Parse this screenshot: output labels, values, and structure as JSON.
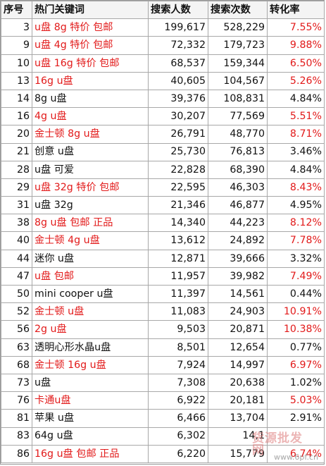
{
  "table": {
    "headers": [
      "序号",
      "热门关键词",
      "搜索人数",
      "搜索次数",
      "转化率"
    ],
    "rows": [
      {
        "id": "3",
        "keyword": "u盘 8g 特价 包邮",
        "users": "199,617",
        "searches": "528,229",
        "rate": "7.55%",
        "highlight": true
      },
      {
        "id": "9",
        "keyword": "u盘 4g 特价 包邮",
        "users": "72,332",
        "searches": "179,723",
        "rate": "9.88%",
        "highlight": true
      },
      {
        "id": "10",
        "keyword": "u盘 16g 特价 包邮",
        "users": "68,537",
        "searches": "159,344",
        "rate": "6.50%",
        "highlight": true
      },
      {
        "id": "13",
        "keyword": "16g u盘",
        "users": "40,605",
        "searches": "104,567",
        "rate": "5.26%",
        "highlight": true
      },
      {
        "id": "14",
        "keyword": "8g u盘",
        "users": "39,376",
        "searches": "108,831",
        "rate": "4.84%",
        "highlight": false
      },
      {
        "id": "16",
        "keyword": "4g u盘",
        "users": "30,207",
        "searches": "77,569",
        "rate": "5.51%",
        "highlight": true
      },
      {
        "id": "20",
        "keyword": "金士顿 8g u盘",
        "users": "26,791",
        "searches": "48,770",
        "rate": "8.71%",
        "highlight": true
      },
      {
        "id": "21",
        "keyword": "创意 u盘",
        "users": "25,730",
        "searches": "76,813",
        "rate": "3.46%",
        "highlight": false
      },
      {
        "id": "28",
        "keyword": "u盘 可爱",
        "users": "22,828",
        "searches": "68,390",
        "rate": "4.84%",
        "highlight": false
      },
      {
        "id": "29",
        "keyword": "u盘 32g 特价 包邮",
        "users": "22,595",
        "searches": "46,303",
        "rate": "8.43%",
        "highlight": true
      },
      {
        "id": "31",
        "keyword": "u盘 32g",
        "users": "21,346",
        "searches": "46,877",
        "rate": "4.95%",
        "highlight": false
      },
      {
        "id": "38",
        "keyword": "8g u盘 包邮 正品",
        "users": "14,340",
        "searches": "44,223",
        "rate": "8.12%",
        "highlight": true
      },
      {
        "id": "40",
        "keyword": "金士顿 4g u盘",
        "users": "13,612",
        "searches": "24,892",
        "rate": "7.78%",
        "highlight": true
      },
      {
        "id": "44",
        "keyword": "迷你 u盘",
        "users": "12,871",
        "searches": "39,666",
        "rate": "3.32%",
        "highlight": false
      },
      {
        "id": "47",
        "keyword": "u盘 包邮",
        "users": "11,957",
        "searches": "39,982",
        "rate": "7.49%",
        "highlight": true
      },
      {
        "id": "50",
        "keyword": "mini cooper u盘",
        "users": "11,397",
        "searches": "14,561",
        "rate": "0.44%",
        "highlight": false
      },
      {
        "id": "52",
        "keyword": "金士顿 u盘",
        "users": "11,083",
        "searches": "24,903",
        "rate": "10.91%",
        "highlight": true
      },
      {
        "id": "56",
        "keyword": "2g u盘",
        "users": "9,503",
        "searches": "20,871",
        "rate": "10.38%",
        "highlight": true
      },
      {
        "id": "63",
        "keyword": "透明心形水晶u盘",
        "users": "8,501",
        "searches": "12,654",
        "rate": "0.77%",
        "highlight": false
      },
      {
        "id": "68",
        "keyword": "金士顿 16g u盘",
        "users": "7,924",
        "searches": "14,997",
        "rate": "6.97%",
        "highlight": true
      },
      {
        "id": "73",
        "keyword": "u盘",
        "users": "7,308",
        "searches": "20,638",
        "rate": "1.02%",
        "highlight": false
      },
      {
        "id": "76",
        "keyword": "卡通u盘",
        "users": "6,922",
        "searches": "20,181",
        "rate": "5.03%",
        "highlight": true
      },
      {
        "id": "81",
        "keyword": "苹果 u盘",
        "users": "6,466",
        "searches": "13,704",
        "rate": "2.91%",
        "highlight": false
      },
      {
        "id": "83",
        "keyword": "64g u盘",
        "users": "6,302",
        "searches": "14,1",
        "rate": "",
        "highlight": false
      },
      {
        "id": "86",
        "keyword": "16g u盘 包邮 正品",
        "users": "6,220",
        "searches": "15,779",
        "rate": "6.74%",
        "highlight": true
      }
    ]
  },
  "watermark": {
    "main": "货源批发网",
    "sub": "www.6pf.cn"
  },
  "colors": {
    "highlight": "#e21a1a",
    "text": "#111111",
    "grid": "#a8a8a8"
  }
}
